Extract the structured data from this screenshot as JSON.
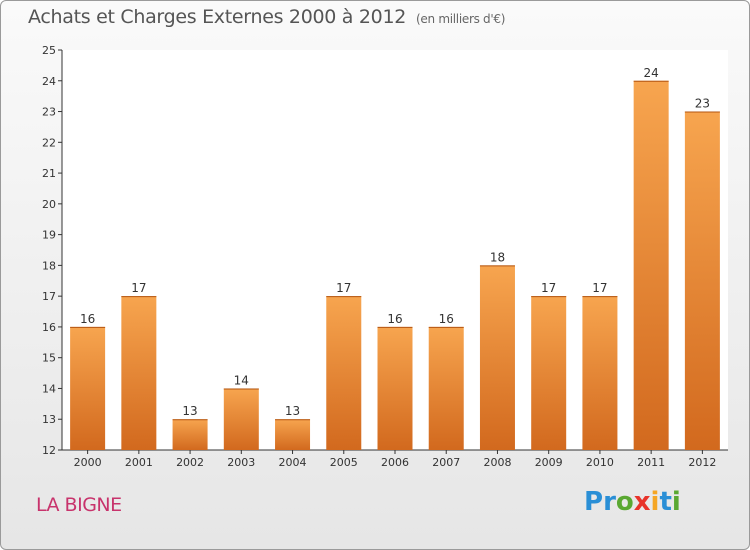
{
  "header": {
    "title": "Achats et Charges Externes 2000 à 2012",
    "subtitle": "(en milliers d'€)"
  },
  "place_label": "LA BIGNE",
  "logo": {
    "text": "Proxiti",
    "letters": [
      {
        "ch": "P",
        "color": "#2a8fd6"
      },
      {
        "ch": "r",
        "color": "#2a8fd6"
      },
      {
        "ch": "o",
        "color": "#5aa832"
      },
      {
        "ch": "x",
        "color": "#e8332a"
      },
      {
        "ch": "i",
        "color": "#f5a623"
      },
      {
        "ch": "t",
        "color": "#2a8fd6"
      },
      {
        "ch": "i",
        "color": "#5aa832"
      }
    ]
  },
  "colors": {
    "bar_light": "#f7a54f",
    "bar_dark": "#d2691e",
    "axis": "#333333",
    "grid": "#dddddd"
  },
  "chart_data": {
    "type": "bar",
    "categories": [
      "2000",
      "2001",
      "2002",
      "2003",
      "2004",
      "2005",
      "2006",
      "2007",
      "2008",
      "2009",
      "2010",
      "2011",
      "2012"
    ],
    "values": [
      16,
      17,
      13,
      14,
      13,
      17,
      16,
      16,
      18,
      17,
      17,
      24,
      23
    ],
    "ylim": [
      12,
      25
    ],
    "yticks": [
      12,
      13,
      14,
      15,
      16,
      17,
      18,
      19,
      20,
      21,
      22,
      23,
      24,
      25
    ],
    "grid": false,
    "data_labels": true
  }
}
